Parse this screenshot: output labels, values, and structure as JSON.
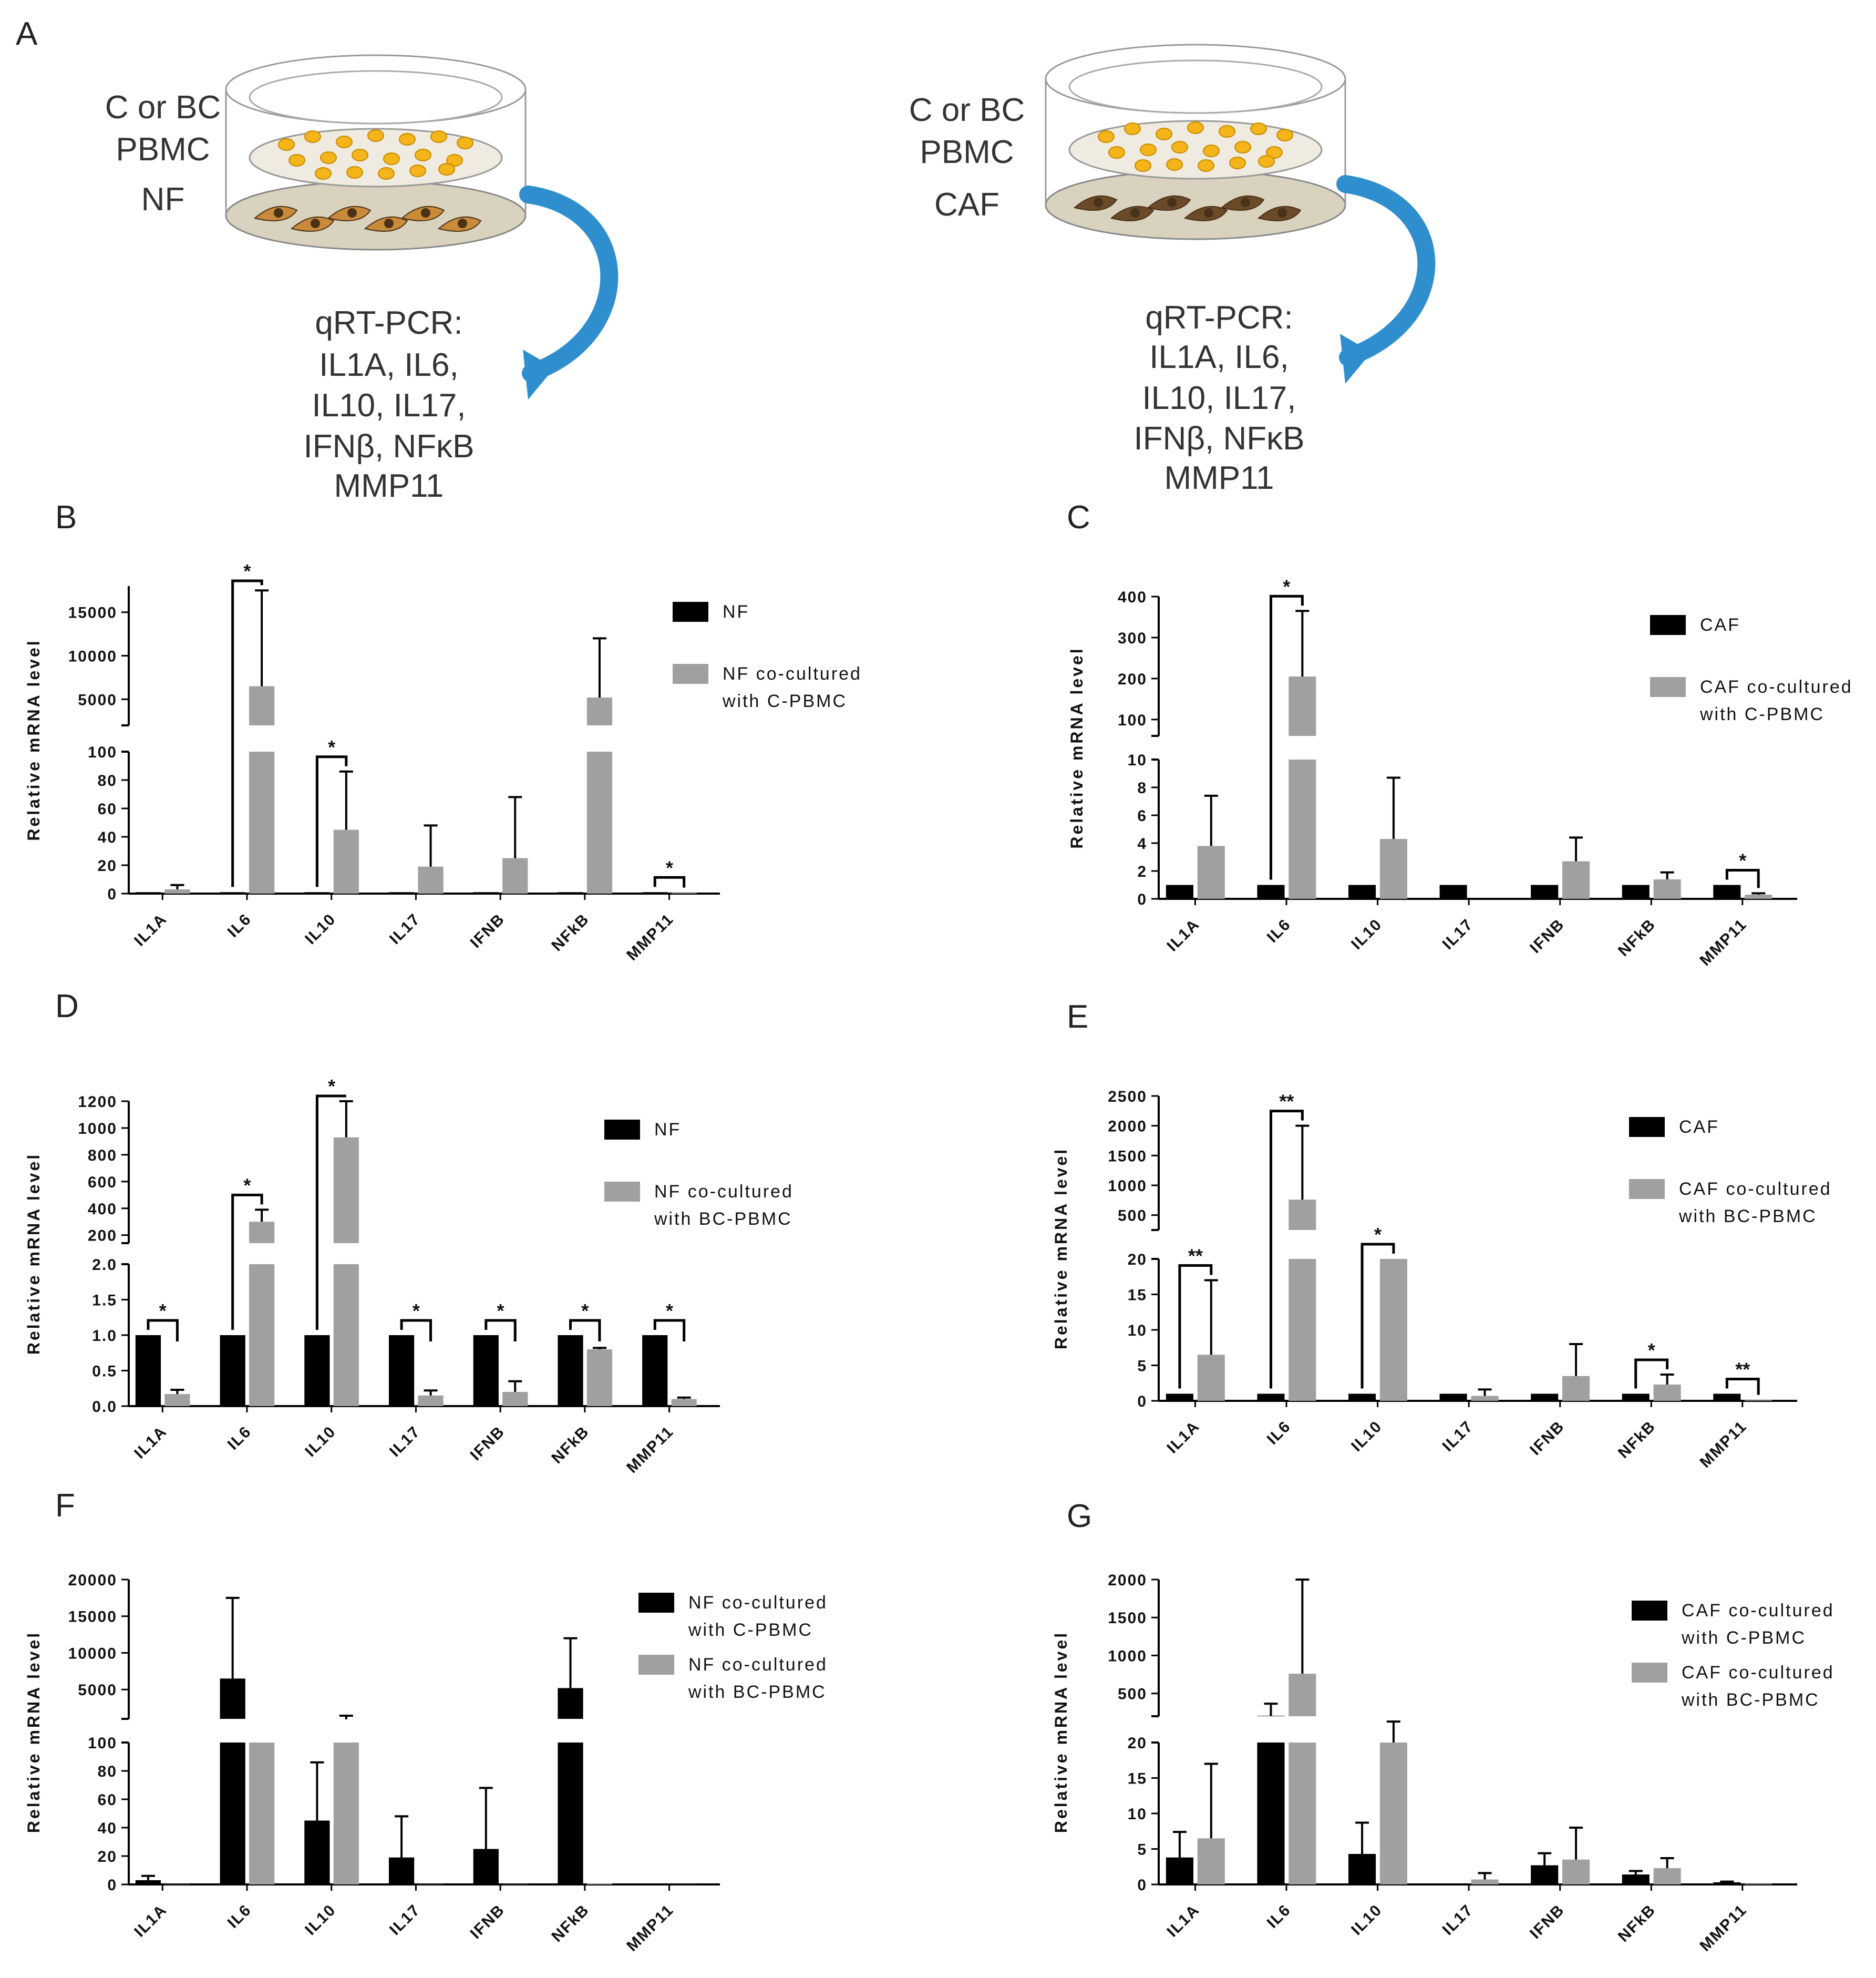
{
  "colors": {
    "primary": "#000000",
    "secondary": "#a0a0a0",
    "cell_yellow": "#f4b41a",
    "fibroblast": "#c98a3a",
    "caf": "#6b4a2a",
    "arrow": "#2f8fce",
    "dish": "#e9e4d6"
  },
  "schematic": {
    "letter": "A",
    "left": {
      "lines": [
        "C or BC",
        "PBMC",
        "NF"
      ],
      "qpcr": [
        "qRT-PCR:",
        "IL1A, IL6,",
        "IL10, IL17,",
        "IFNβ, NFκB",
        "MMP11"
      ]
    },
    "right": {
      "lines": [
        "C or BC",
        "PBMC",
        "CAF"
      ],
      "qpcr": [
        "qRT-PCR:",
        "IL1A, IL6,",
        "IL10, IL17,",
        "IFNβ, NFκB",
        "MMP11"
      ]
    }
  },
  "chart_data": [
    {
      "panel": "B",
      "type": "bar",
      "ylabel": "Relative mRNA level",
      "categories": [
        "IL1A",
        "IL6",
        "IL10",
        "IL17",
        "IFNB",
        "NFkB",
        "MMP11"
      ],
      "series": [
        {
          "name": "NF",
          "color": "primary",
          "values": [
            1,
            1,
            1,
            1,
            1,
            1,
            1
          ],
          "errors": [
            0,
            0,
            0,
            0,
            0,
            0,
            0
          ]
        },
        {
          "name": "NF co-cultured with C-PBMC",
          "color": "secondary",
          "values": [
            3,
            6500,
            45,
            19,
            25,
            5200,
            0.5
          ],
          "errors": [
            3,
            11000,
            41,
            29,
            43,
            6800,
            0
          ]
        }
      ],
      "legend": [
        {
          "text": [
            "NF"
          ],
          "color": "primary"
        },
        {
          "text": [
            "NF co-cultured",
            "with C-PBMC"
          ],
          "color": "secondary"
        }
      ],
      "axis": {
        "lower": [
          0,
          100
        ],
        "lower_ticks": [
          "0",
          "20",
          "40",
          "60",
          "80",
          "100"
        ],
        "upper": [
          2000,
          18000
        ],
        "upper_ticks": [
          "5000",
          "10000",
          "15000"
        ]
      },
      "sig": [
        {
          "group": 1,
          "label": "*"
        },
        {
          "group": 2,
          "label": "*"
        },
        {
          "group": 6,
          "label": "*"
        }
      ]
    },
    {
      "panel": "C",
      "type": "bar",
      "ylabel": "Relative mRNA level",
      "categories": [
        "IL1A",
        "IL6",
        "IL10",
        "IL17",
        "IFNB",
        "NFkB",
        "MMP11"
      ],
      "series": [
        {
          "name": "CAF",
          "color": "primary",
          "values": [
            1,
            1,
            1,
            1,
            1,
            1,
            1
          ],
          "errors": [
            0,
            0,
            0,
            0,
            0,
            0,
            0
          ]
        },
        {
          "name": "CAF co-cultured with C-PBMC",
          "color": "secondary",
          "values": [
            3.8,
            205,
            4.3,
            0,
            2.7,
            1.4,
            0.3
          ],
          "errors": [
            3.6,
            160,
            4.4,
            0,
            1.7,
            0.5,
            0.1
          ]
        }
      ],
      "legend": [
        {
          "text": [
            "CAF"
          ],
          "color": "primary"
        },
        {
          "text": [
            "CAF co-cultured",
            "with C-PBMC"
          ],
          "color": "secondary"
        }
      ],
      "axis": {
        "lower": [
          0,
          10
        ],
        "lower_ticks": [
          "0",
          "2",
          "4",
          "6",
          "8",
          "10"
        ],
        "upper": [
          60,
          400
        ],
        "upper_ticks": [
          "100",
          "200",
          "300",
          "400"
        ]
      },
      "sig": [
        {
          "group": 1,
          "label": "*"
        },
        {
          "group": 6,
          "label": "*"
        }
      ]
    },
    {
      "panel": "D",
      "type": "bar",
      "ylabel": "Relative mRNA level",
      "categories": [
        "IL1A",
        "IL6",
        "IL10",
        "IL17",
        "IFNB",
        "NFkB",
        "MMP11"
      ],
      "series": [
        {
          "name": "NF",
          "color": "primary",
          "values": [
            1,
            1,
            1,
            1,
            1,
            1,
            1
          ],
          "errors": [
            0,
            0,
            0,
            0,
            0,
            0,
            0
          ]
        },
        {
          "name": "NF co-cultured with BC-PBMC",
          "color": "secondary",
          "values": [
            0.17,
            300,
            930,
            0.15,
            0.2,
            0.8,
            0.1
          ],
          "errors": [
            0.06,
            90,
            270,
            0.07,
            0.15,
            0.02,
            0.02
          ]
        }
      ],
      "legend": [
        {
          "text": [
            "NF"
          ],
          "color": "primary"
        },
        {
          "text": [
            "NF co-cultured",
            "with BC-PBMC"
          ],
          "color": "secondary"
        }
      ],
      "axis": {
        "lower": [
          0,
          2.0
        ],
        "lower_ticks": [
          "0.0",
          "0.5",
          "1.0",
          "1.5",
          "2.0"
        ],
        "upper": [
          140,
          1200
        ],
        "upper_ticks": [
          "200",
          "400",
          "600",
          "800",
          "1000",
          "1200"
        ]
      },
      "sig": [
        {
          "group": 0,
          "label": "*"
        },
        {
          "group": 1,
          "label": "*"
        },
        {
          "group": 2,
          "label": "*"
        },
        {
          "group": 3,
          "label": "*"
        },
        {
          "group": 4,
          "label": "*"
        },
        {
          "group": 5,
          "label": "*"
        },
        {
          "group": 6,
          "label": "*"
        }
      ]
    },
    {
      "panel": "E",
      "type": "bar",
      "ylabel": "Relative mRNA level",
      "categories": [
        "IL1A",
        "IL6",
        "IL10",
        "IL17",
        "IFNB",
        "NFkB",
        "MMP11"
      ],
      "series": [
        {
          "name": "CAF",
          "color": "primary",
          "values": [
            1,
            1,
            1,
            1,
            1,
            1,
            1
          ],
          "errors": [
            0,
            0,
            0,
            0,
            0,
            0,
            0
          ]
        },
        {
          "name": "CAF co-cultured with BC-PBMC",
          "color": "secondary",
          "values": [
            6.5,
            760,
            20,
            0.7,
            3.5,
            2.3,
            0.1
          ],
          "errors": [
            10.5,
            1240,
            0,
            0.9,
            4.5,
            1.4,
            0
          ]
        }
      ],
      "legend": [
        {
          "text": [
            "CAF"
          ],
          "color": "primary"
        },
        {
          "text": [
            "CAF co-cultured",
            "with BC-PBMC"
          ],
          "color": "secondary"
        }
      ],
      "axis": {
        "lower": [
          0,
          20
        ],
        "lower_ticks": [
          "0",
          "5",
          "10",
          "15",
          "20"
        ],
        "upper": [
          250,
          2500
        ],
        "upper_ticks": [
          "500",
          "1000",
          "1500",
          "2000",
          "2500"
        ]
      },
      "sig": [
        {
          "group": 0,
          "label": "**"
        },
        {
          "group": 1,
          "label": "**"
        },
        {
          "group": 2,
          "label": "*"
        },
        {
          "group": 5,
          "label": "*"
        },
        {
          "group": 6,
          "label": "**"
        }
      ]
    },
    {
      "panel": "F",
      "type": "bar",
      "ylabel": "Relative mRNA level",
      "categories": [
        "IL1A",
        "IL6",
        "IL10",
        "IL17",
        "IFNB",
        "NFkB",
        "MMP11"
      ],
      "series": [
        {
          "name": "NF co-cultured with C-PBMC",
          "color": "primary",
          "values": [
            3,
            6500,
            45,
            19,
            25,
            5200,
            0.5
          ],
          "errors": [
            3,
            11000,
            41,
            29,
            43,
            6800,
            0
          ]
        },
        {
          "name": "NF co-cultured with BC-PBMC",
          "color": "secondary",
          "values": [
            0.2,
            300,
            930,
            0.2,
            0.2,
            0.8,
            0.1
          ],
          "errors": [
            0,
            0,
            500,
            0,
            0,
            0,
            0
          ]
        }
      ],
      "legend": [
        {
          "text": [
            "NF co-cultured",
            "with C-PBMC"
          ],
          "color": "primary"
        },
        {
          "text": [
            "NF co-cultured",
            "with BC-PBMC"
          ],
          "color": "secondary"
        }
      ],
      "axis": {
        "lower": [
          0,
          100
        ],
        "lower_ticks": [
          "0",
          "20",
          "40",
          "60",
          "80",
          "100"
        ],
        "upper": [
          1000,
          20000
        ],
        "upper_ticks": [
          "5000",
          "10000",
          "15000",
          "20000"
        ]
      },
      "sig": []
    },
    {
      "panel": "G",
      "type": "bar",
      "ylabel": "Relative mRNA level",
      "categories": [
        "IL1A",
        "IL6",
        "IL10",
        "IL17",
        "IFNB",
        "NFkB",
        "MMP11"
      ],
      "series": [
        {
          "name": "CAF co-cultured with C-PBMC",
          "color": "primary",
          "values": [
            3.8,
            205,
            4.3,
            0,
            2.7,
            1.4,
            0.3
          ],
          "errors": [
            3.6,
            160,
            4.4,
            0,
            1.7,
            0.5,
            0.1
          ]
        },
        {
          "name": "CAF co-cultured with BC-PBMC",
          "color": "secondary",
          "values": [
            6.5,
            760,
            20,
            0.7,
            3.5,
            2.3,
            0.1
          ],
          "errors": [
            10.5,
            1240,
            110,
            0.9,
            4.5,
            1.4,
            0
          ]
        }
      ],
      "legend": [
        {
          "text": [
            "CAF co-cultured",
            "with C-PBMC"
          ],
          "color": "primary"
        },
        {
          "text": [
            "CAF co-cultured",
            "with BC-PBMC"
          ],
          "color": "secondary"
        }
      ],
      "axis": {
        "lower": [
          0,
          20
        ],
        "lower_ticks": [
          "0",
          "5",
          "10",
          "15",
          "20"
        ],
        "upper": [
          200,
          2000
        ],
        "upper_ticks": [
          "500",
          "1000",
          "1500",
          "2000"
        ]
      },
      "sig": []
    }
  ]
}
